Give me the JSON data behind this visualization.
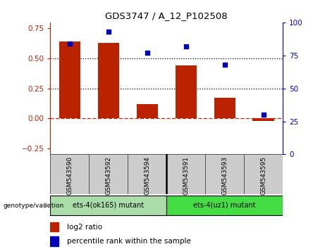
{
  "title": "GDS3747 / A_12_P102508",
  "categories": [
    "GSM543590",
    "GSM543592",
    "GSM543594",
    "GSM543591",
    "GSM543593",
    "GSM543595"
  ],
  "log2_ratio": [
    0.64,
    0.63,
    0.12,
    0.44,
    0.17,
    -0.02
  ],
  "percentile_rank": [
    84,
    93,
    77,
    82,
    68,
    30
  ],
  "bar_color": "#bb2200",
  "dot_color": "#0000bb",
  "ylim_left": [
    -0.3,
    0.8
  ],
  "ylim_right": [
    0,
    100
  ],
  "yticks_left": [
    -0.25,
    0.0,
    0.25,
    0.5,
    0.75
  ],
  "yticks_right": [
    0,
    25,
    50,
    75,
    100
  ],
  "group1_label": "ets-4(ok165) mutant",
  "group2_label": "ets-4(uz1) mutant",
  "group1_indices": [
    0,
    1,
    2
  ],
  "group2_indices": [
    3,
    4,
    5
  ],
  "group1_color": "#aaddaa",
  "group2_color": "#44dd44",
  "xlabel_area_color": "#cccccc",
  "genotype_label": "genotype/variation",
  "legend_bar_label": "log2 ratio",
  "legend_dot_label": "percentile rank within the sample",
  "bar_width": 0.55,
  "zero_line_color": "#cc2200",
  "dotted_line_color": "#000000"
}
